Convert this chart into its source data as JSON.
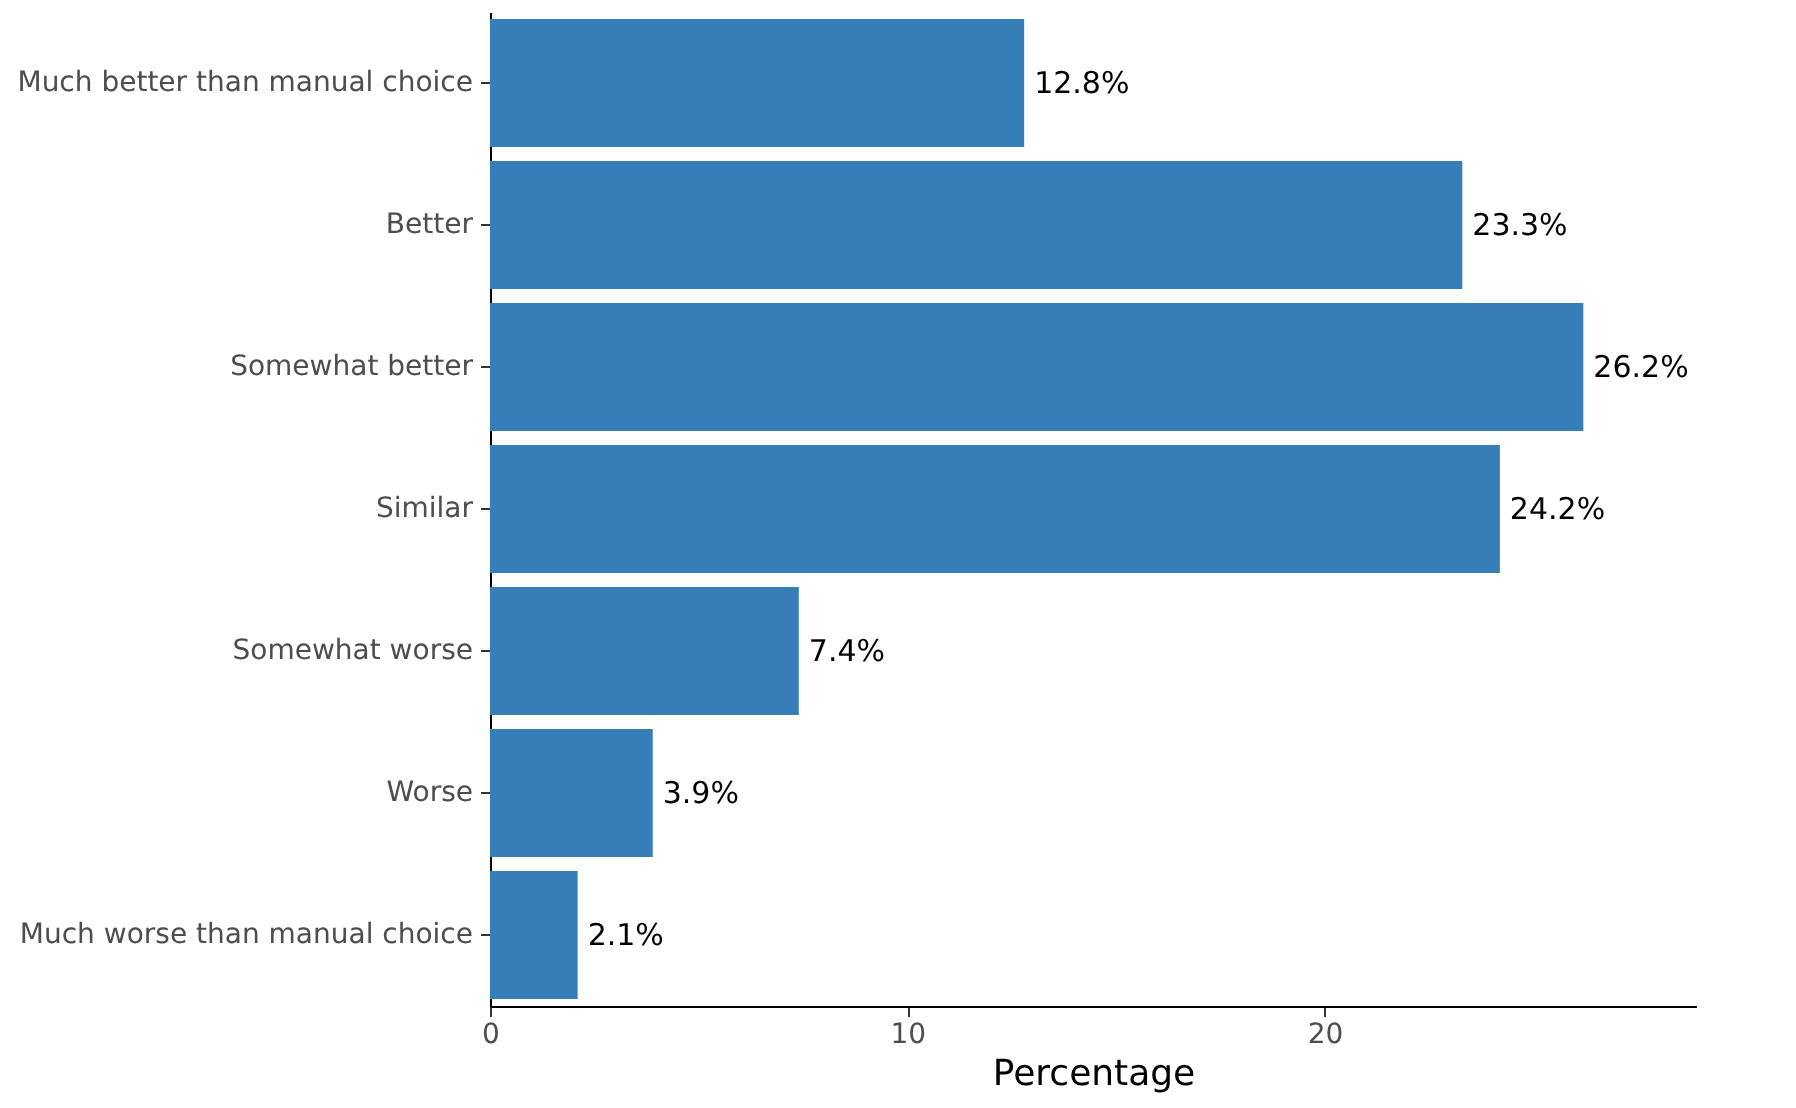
{
  "chart_data": {
    "type": "bar",
    "orientation": "horizontal",
    "xlabel": "Percentage",
    "categories": [
      "Much better than manual choice",
      "Better",
      "Somewhat better",
      "Similar",
      "Somewhat worse",
      "Worse",
      "Much worse than manual choice"
    ],
    "values": [
      12.8,
      23.3,
      26.2,
      24.2,
      7.4,
      3.9,
      2.1
    ],
    "value_labels": [
      "12.8%",
      "23.3%",
      "26.2%",
      "24.2%",
      "7.4%",
      "3.9%",
      "2.1%"
    ],
    "color": "#377eb8",
    "xlim": [
      0,
      28.9
    ],
    "xticks": [
      0,
      10,
      20
    ],
    "grid": false
  }
}
